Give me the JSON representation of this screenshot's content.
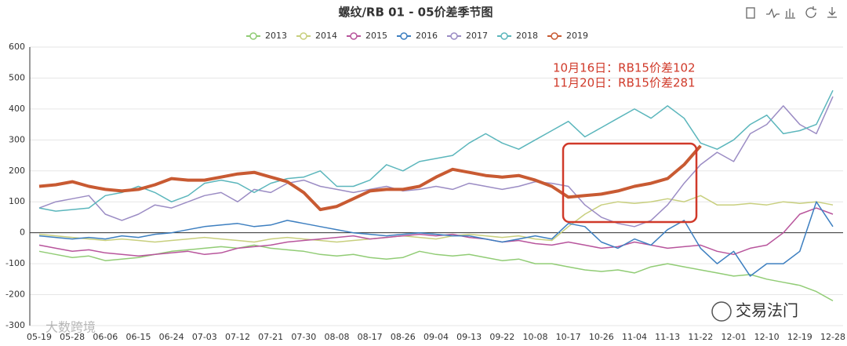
{
  "chart_data": {
    "type": "line",
    "title": "螺纹/RB 01 - 05价差季节图",
    "categories": [
      "05-19",
      null,
      "05-28",
      null,
      "06-06",
      null,
      "06-15",
      null,
      "06-24",
      null,
      "07-03",
      null,
      "07-12",
      null,
      "07-21",
      null,
      "07-30",
      null,
      "08-08",
      null,
      "08-17",
      null,
      "08-26",
      null,
      "09-04",
      null,
      "09-13",
      null,
      "09-22",
      null,
      "10-08",
      null,
      "10-17",
      null,
      "10-26",
      null,
      "11-04",
      null,
      "11-13",
      null,
      "11-22",
      null,
      "12-01",
      null,
      "12-10",
      null,
      "12-19",
      null,
      "12-28"
    ],
    "ylim": [
      -300,
      600
    ],
    "yticks": [
      -300,
      -200,
      -100,
      0,
      100,
      200,
      300,
      400,
      500,
      600
    ],
    "grid": true,
    "series": [
      {
        "name": "2013",
        "color": "#91cc75",
        "values": [
          -60,
          -70,
          -80,
          -75,
          -90,
          -85,
          -80,
          -70,
          -60,
          -55,
          -50,
          -45,
          -50,
          -40,
          -50,
          -55,
          -60,
          -70,
          -75,
          -70,
          -80,
          -85,
          -80,
          -60,
          -70,
          -75,
          -70,
          -80,
          -90,
          -85,
          -100,
          -100,
          -110,
          -120,
          -125,
          -120,
          -130,
          -110,
          -100,
          -110,
          -120,
          -130,
          -140,
          -135,
          -150,
          -160,
          -170,
          -190,
          -220
        ]
      },
      {
        "name": "2014",
        "color": "#c8cf7e",
        "values": [
          -5,
          -10,
          -15,
          -20,
          -25,
          -20,
          -25,
          -30,
          -25,
          -20,
          -15,
          -20,
          -25,
          -30,
          -20,
          -15,
          -20,
          -25,
          -30,
          -25,
          -20,
          -15,
          -10,
          -15,
          -20,
          -10,
          -5,
          -10,
          -15,
          -10,
          -20,
          -25,
          20,
          60,
          90,
          100,
          95,
          100,
          110,
          100,
          120,
          90,
          90,
          95,
          90,
          100,
          95,
          100,
          90
        ]
      },
      {
        "name": "2015",
        "color": "#b8559c",
        "values": [
          -40,
          -50,
          -60,
          -55,
          -65,
          -70,
          -75,
          -70,
          -65,
          -60,
          -70,
          -65,
          -50,
          -45,
          -40,
          -30,
          -25,
          -20,
          -15,
          -10,
          -20,
          -15,
          -10,
          -5,
          -10,
          -5,
          -15,
          -20,
          -30,
          -25,
          -35,
          -40,
          -30,
          -40,
          -50,
          -45,
          -30,
          -40,
          -50,
          -45,
          -40,
          -60,
          -70,
          -50,
          -40,
          0,
          60,
          80,
          60
        ]
      },
      {
        "name": "2016",
        "color": "#3d7fc0",
        "values": [
          -10,
          -15,
          -20,
          -15,
          -20,
          -10,
          -15,
          -5,
          0,
          10,
          20,
          25,
          30,
          20,
          25,
          40,
          30,
          20,
          10,
          0,
          -5,
          -10,
          -5,
          0,
          -5,
          -10,
          -10,
          -20,
          -30,
          -20,
          -10,
          -20,
          30,
          20,
          -30,
          -50,
          -20,
          -40,
          10,
          40,
          -50,
          -100,
          -60,
          -140,
          -100,
          -100,
          -60,
          100,
          20
        ]
      },
      {
        "name": "2017",
        "color": "#9b8cc4",
        "values": [
          80,
          100,
          110,
          120,
          60,
          40,
          60,
          90,
          80,
          100,
          120,
          130,
          100,
          140,
          130,
          160,
          170,
          150,
          140,
          130,
          140,
          150,
          135,
          140,
          150,
          140,
          160,
          150,
          140,
          150,
          165,
          160,
          150,
          90,
          50,
          30,
          20,
          40,
          90,
          160,
          220,
          260,
          230,
          320,
          350,
          410,
          350,
          320,
          440
        ]
      },
      {
        "name": "2018",
        "color": "#5bb6bc",
        "values": [
          80,
          70,
          75,
          80,
          120,
          130,
          150,
          130,
          100,
          120,
          160,
          170,
          160,
          130,
          160,
          175,
          180,
          200,
          150,
          150,
          170,
          220,
          200,
          230,
          240,
          250,
          290,
          320,
          290,
          270,
          300,
          330,
          360,
          310,
          340,
          370,
          400,
          370,
          410,
          370,
          290,
          270,
          300,
          350,
          380,
          320,
          330,
          350,
          460
        ]
      },
      {
        "name": "2019",
        "color": "#c85a32",
        "values": [
          150,
          155,
          165,
          150,
          140,
          135,
          140,
          155,
          175,
          170,
          170,
          180,
          190,
          195,
          180,
          165,
          130,
          75,
          85,
          110,
          135,
          140,
          140,
          150,
          180,
          205,
          195,
          185,
          180,
          185,
          170,
          150,
          115,
          120,
          125,
          135,
          150,
          160,
          175,
          220,
          281,
          null,
          null,
          null,
          null,
          null,
          null,
          null,
          null
        ]
      }
    ],
    "annotations": [
      "10月16日：RB15价差102",
      "11月20日：RB15价差281"
    ],
    "watermarks": [
      "交易法门",
      "大数跨境"
    ]
  }
}
